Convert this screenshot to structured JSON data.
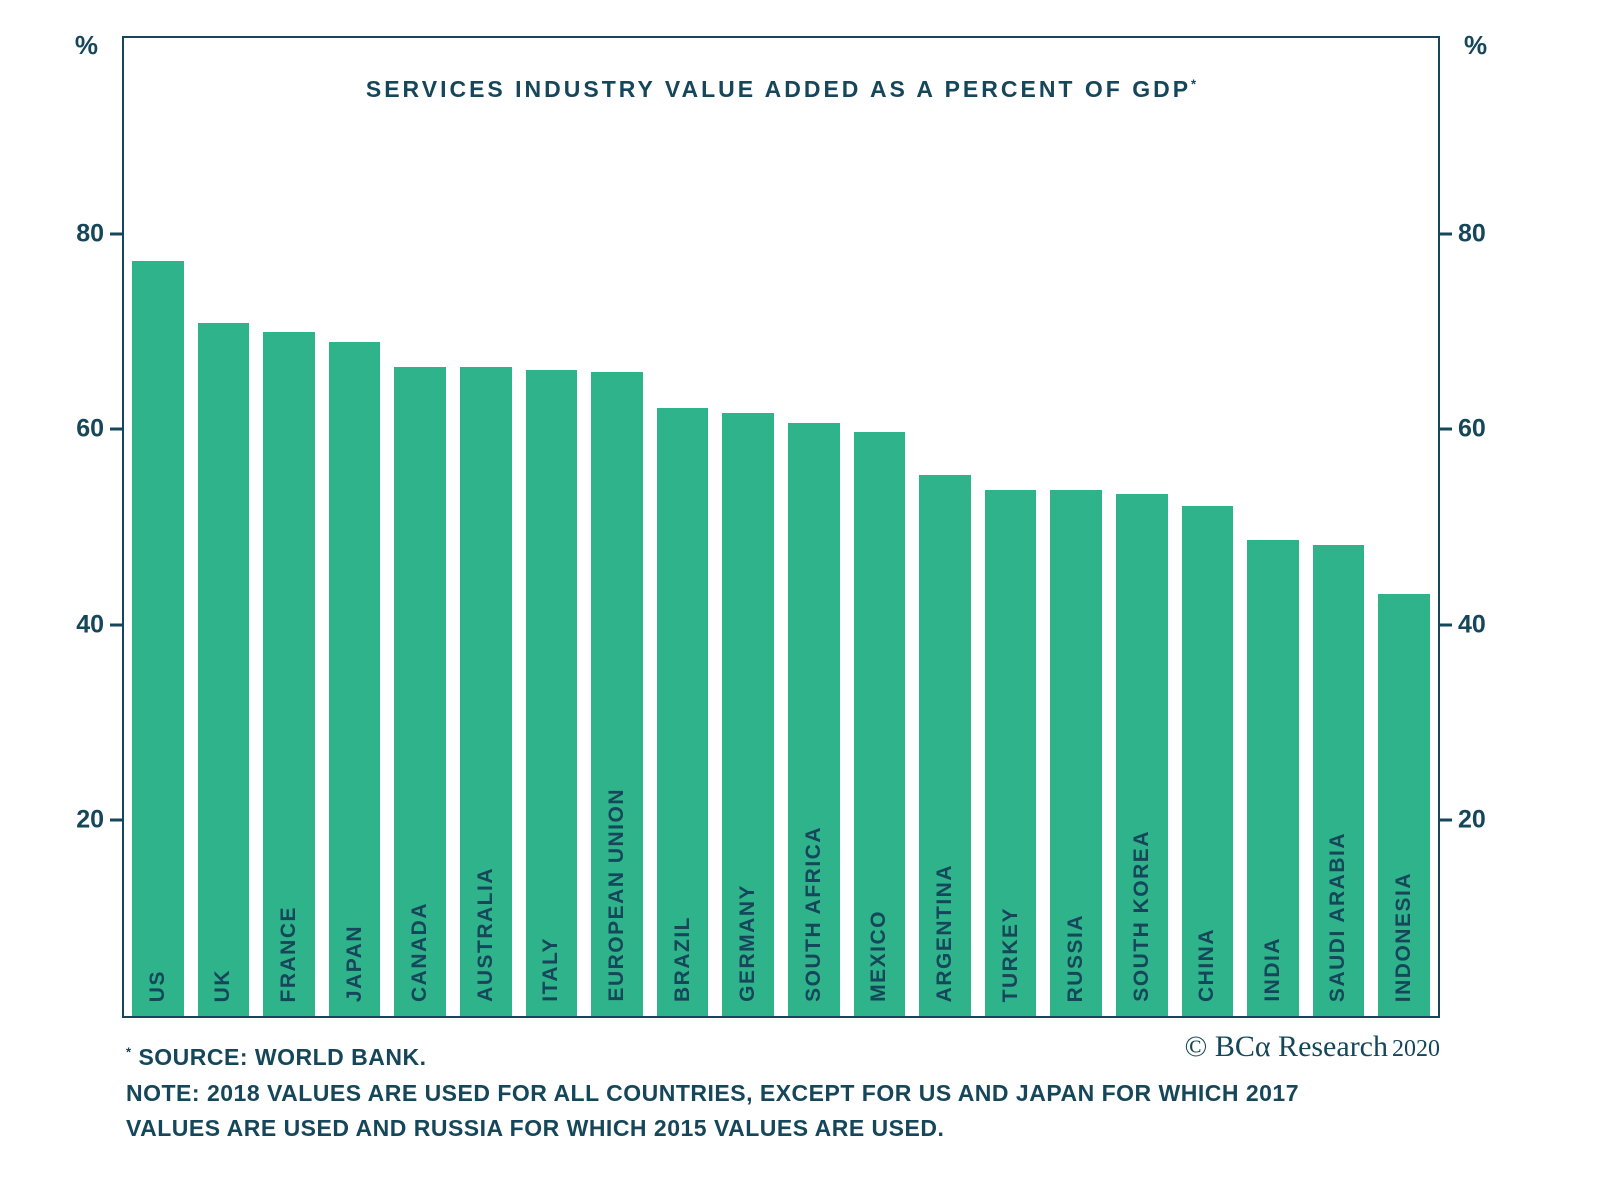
{
  "chart_data": {
    "type": "bar",
    "title": "SERVICES INDUSTRY VALUE ADDED AS A PERCENT OF GDP",
    "title_sup": "*",
    "categories": [
      "US",
      "UK",
      "FRANCE",
      "JAPAN",
      "CANADA",
      "AUSTRALIA",
      "ITALY",
      "EUROPEAN UNION",
      "BRAZIL",
      "GERMANY",
      "SOUTH AFRICA",
      "MEXICO",
      "ARGENTINA",
      "TURKEY",
      "RUSSIA",
      "SOUTH KOREA",
      "CHINA",
      "INDIA",
      "SAUDI ARABIA",
      "INDONESIA"
    ],
    "values": [
      77.2,
      70.9,
      69.9,
      68.9,
      66.4,
      66.4,
      66.1,
      65.8,
      62.2,
      61.7,
      60.6,
      59.7,
      55.3,
      53.8,
      53.8,
      53.4,
      52.1,
      48.7,
      48.2,
      43.2
    ],
    "ylim": [
      0,
      100
    ],
    "yticks": [
      20,
      40,
      60,
      80
    ],
    "ylabel_left": "%",
    "ylabel_right": "%",
    "xlabel": "",
    "grid": false,
    "legend": "none",
    "bar_color": "#2fb38b",
    "text_color": "#16465a"
  },
  "footer": {
    "source_mark": "*",
    "source": " SOURCE: WORLD BANK.",
    "note_line1": "NOTE: 2018 VALUES ARE USED FOR ALL COUNTRIES, EXCEPT FOR US AND JAPAN FOR WHICH 2017",
    "note_line2": "VALUES ARE USED AND RUSSIA FOR WHICH 2015 VALUES ARE USED.",
    "copyright": "© BCα Research",
    "year": "2020"
  }
}
